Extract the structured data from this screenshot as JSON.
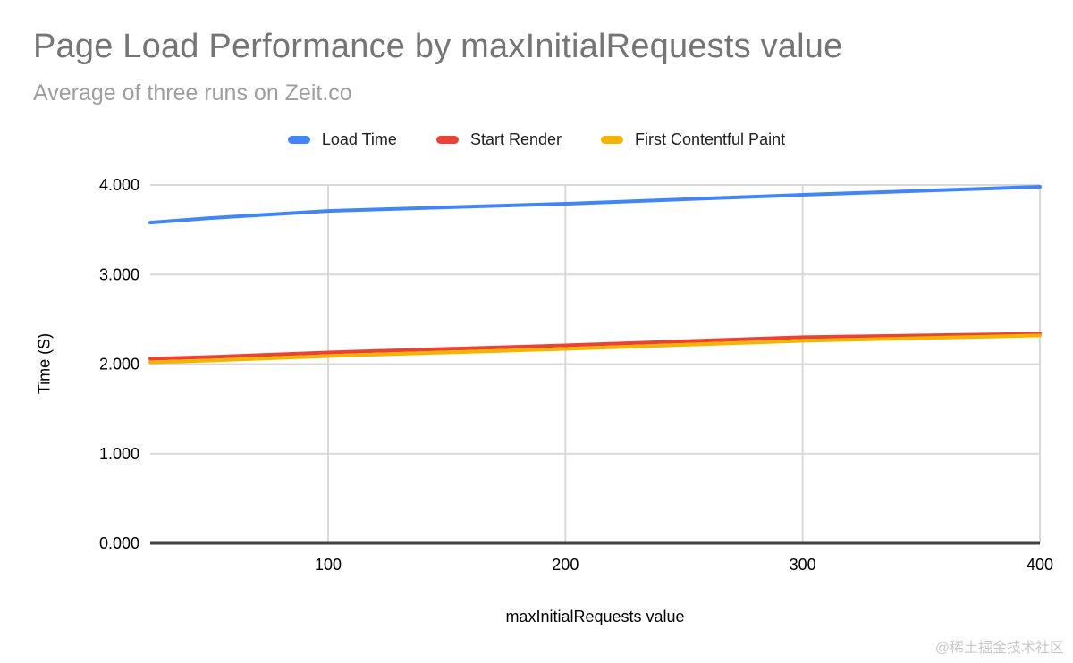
{
  "title": "Page Load Performance by maxInitialRequests value",
  "subtitle": "Average of three runs on Zeit.co",
  "watermark": "@稀土掘金技术社区",
  "colors": {
    "load_time": "#4285F4",
    "start_render": "#EA4335",
    "first_contentful_paint": "#F4B400",
    "title_text": "#757575",
    "subtitle_text": "#9E9E9E",
    "gridline": "#D9D9D9",
    "axis_line": "#424242",
    "tick_text": "#000000"
  },
  "chart_data": {
    "type": "line",
    "title": "Page Load Performance by maxInitialRequests value",
    "subtitle": "Average of three runs on Zeit.co",
    "xlabel": "maxInitialRequests value",
    "ylabel": "Time (S)",
    "xlim": [
      25,
      400
    ],
    "ylim": [
      0,
      4
    ],
    "grid": true,
    "legend_position": "top",
    "x": [
      25,
      50,
      100,
      200,
      300,
      400
    ],
    "series": [
      {
        "name": "Load Time",
        "color": "#4285F4",
        "values": [
          3.58,
          3.63,
          3.71,
          3.79,
          3.89,
          3.98
        ]
      },
      {
        "name": "Start Render",
        "color": "#EA4335",
        "values": [
          2.06,
          2.08,
          2.13,
          2.21,
          2.3,
          2.34
        ]
      },
      {
        "name": "First Contentful Paint",
        "color": "#F4B400",
        "values": [
          2.02,
          2.04,
          2.09,
          2.17,
          2.26,
          2.32
        ]
      }
    ],
    "y_ticks": [
      {
        "value": 0,
        "label": "0.000"
      },
      {
        "value": 1,
        "label": "1.000"
      },
      {
        "value": 2,
        "label": "2.000"
      },
      {
        "value": 3,
        "label": "3.000"
      },
      {
        "value": 4,
        "label": "4.000"
      }
    ],
    "x_ticks": [
      {
        "value": 100,
        "label": "100"
      },
      {
        "value": 200,
        "label": "200"
      },
      {
        "value": 300,
        "label": "300"
      },
      {
        "value": 400,
        "label": "400"
      }
    ]
  }
}
